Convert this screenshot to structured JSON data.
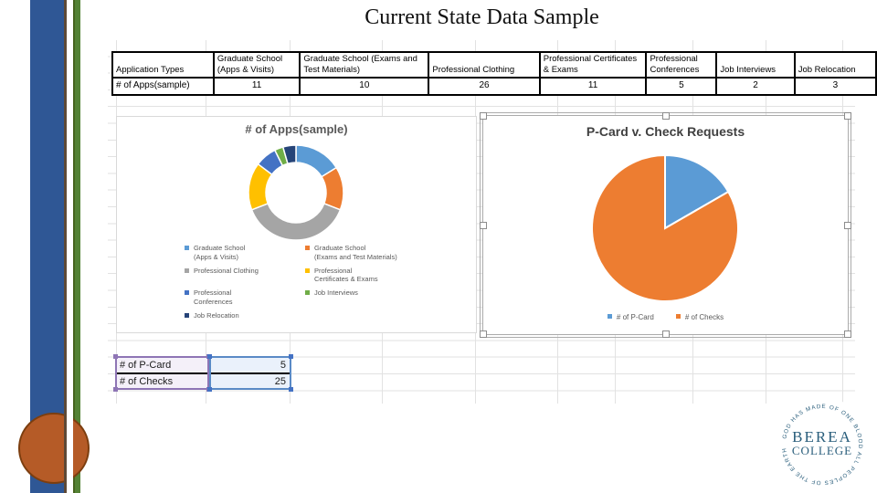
{
  "slide": {
    "title": "Current State Data Sample"
  },
  "spreadsheet_table": {
    "columns": [
      "Application Types",
      "Graduate School (Apps & Visits)",
      "Graduate School (Exams and Test Materials)",
      "Professional Clothing",
      "Professional Certificates & Exams",
      "Professional Conferences",
      "Job Interviews",
      "Job Relocation"
    ],
    "row_label": "# of Apps(sample)",
    "row_values": [
      "11",
      "10",
      "26",
      "11",
      "5",
      "2",
      "3"
    ]
  },
  "chart_data": [
    {
      "type": "pie",
      "subtype": "donut",
      "title": "# of Apps(sample)",
      "categories": [
        "Graduate School (Apps & Visits)",
        "Graduate School (Exams and Test Materials)",
        "Professional Clothing",
        "Professional Certificates & Exams",
        "Professional Conferences",
        "Job Interviews",
        "Job Relocation"
      ],
      "values": [
        11,
        10,
        26,
        11,
        5,
        2,
        3
      ],
      "colors": [
        "#5B9BD5",
        "#ED7D31",
        "#A5A5A5",
        "#FFC000",
        "#4472C4",
        "#70AD47",
        "#264478"
      ],
      "legend_position": "bottom",
      "legend_lines": [
        [
          "Graduate School",
          "(Apps & Visits)"
        ],
        [
          "Graduate School",
          "(Exams and Test Materials)"
        ],
        [
          "Professional Clothing"
        ],
        [
          "Professional",
          "Certificates & Exams"
        ],
        [
          "Professional",
          "Conferences"
        ],
        [
          "Job Interviews"
        ],
        [
          "Job Relocation"
        ]
      ],
      "legend_grid": [
        [
          0,
          1
        ],
        [
          2,
          3
        ],
        [
          4,
          5
        ],
        [
          6,
          -1
        ]
      ]
    },
    {
      "type": "pie",
      "title": "P-Card v. Check Requests",
      "categories": [
        "# of P-Card",
        "# of Checks"
      ],
      "values": [
        5,
        25
      ],
      "colors": [
        "#5B9BD5",
        "#ED7D31"
      ],
      "legend_position": "bottom",
      "selected": true
    }
  ],
  "mini_table": {
    "rows": [
      {
        "label": "# of P-Card",
        "value": "5"
      },
      {
        "label": "# of Checks",
        "value": "25"
      }
    ]
  },
  "logo": {
    "line1": "BEREA",
    "line2": "COLLEGE",
    "motto": "GOD HAS MADE OF ONE BLOOD ALL PEOPLES OF THE EARTH"
  },
  "accent_colors": {
    "bar_blue": "#2F5795",
    "stripe_brown": "#5E4936",
    "stripe_green": "#548235",
    "circle_orange": "#B55B27",
    "circle_border": "#7C3E0F"
  }
}
